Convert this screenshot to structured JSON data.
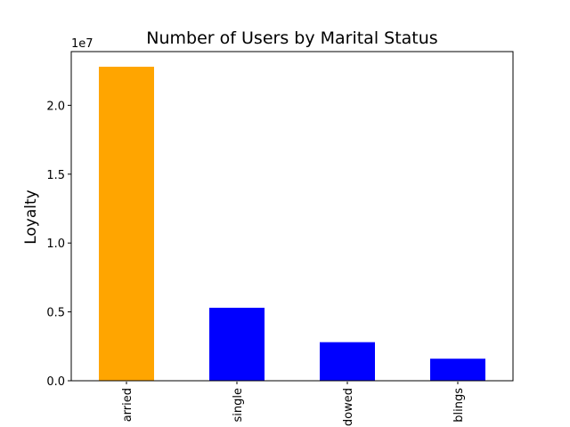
{
  "chart_data": {
    "type": "bar",
    "title": "Number of Users by Marital Status",
    "xlabel": "",
    "ylabel": "Loyalty",
    "offset_label": "1e7",
    "categories": [
      "married",
      "single",
      "widowed",
      "with siblings"
    ],
    "tick_labels_visible": [
      "arried",
      "single",
      "dowed",
      "blings"
    ],
    "values": [
      22800000,
      5300000,
      2800000,
      1600000
    ],
    "colors": [
      "#ffa500",
      "#0000ff",
      "#0000ff",
      "#0000ff"
    ],
    "ylim": [
      0,
      23900000
    ],
    "yticks": [
      0,
      5000000,
      10000000,
      15000000,
      20000000
    ],
    "ytick_labels": [
      "0.0",
      "0.5",
      "1.0",
      "1.5",
      "2.0"
    ],
    "grid": false,
    "legend": "none"
  }
}
